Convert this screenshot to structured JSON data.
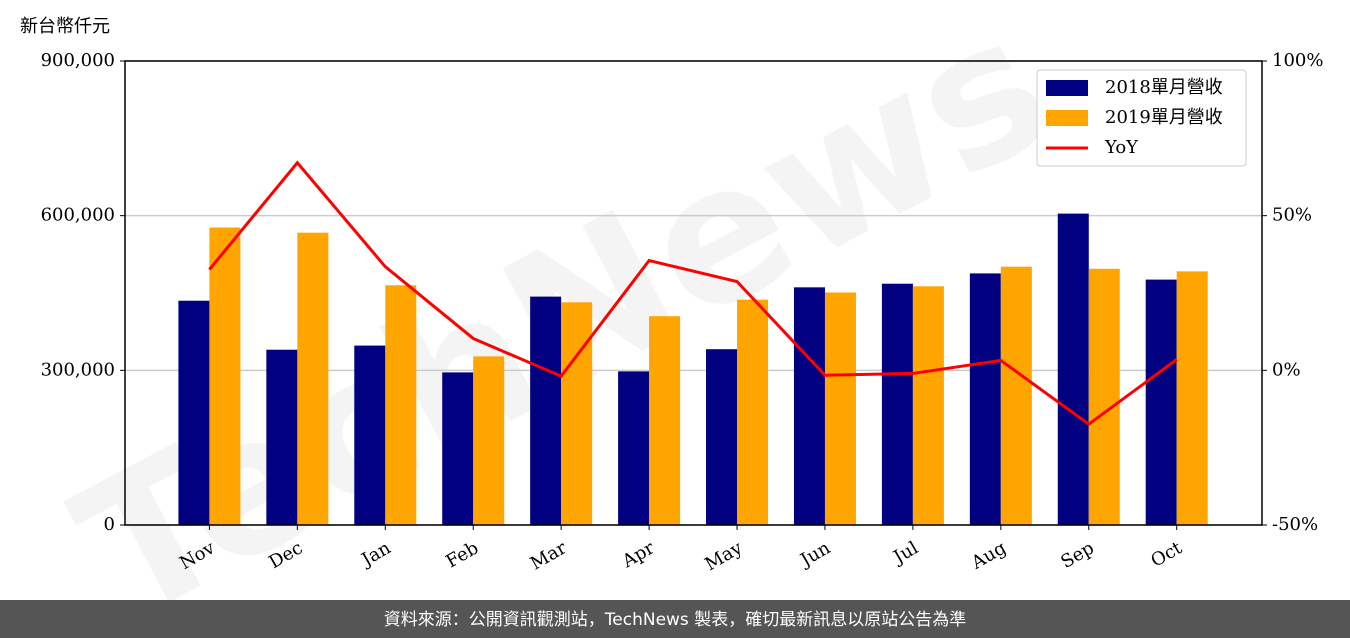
{
  "chart_data": {
    "type": "bar",
    "y_label": "新台幣仟元",
    "watermark": "TechNews",
    "footer": "資料來源：公開資訊觀測站，TechNews 製表，確切最新訊息以原站公告為準",
    "categories": [
      "Nov",
      "Dec",
      "Jan",
      "Feb",
      "Mar",
      "Apr",
      "May",
      "Jun",
      "Jul",
      "Aug",
      "Sep",
      "Oct"
    ],
    "series": [
      {
        "name": "2018單月營收",
        "type": "bar",
        "color": "#000080",
        "values": [
          435000,
          340000,
          348000,
          296000,
          443000,
          298000,
          341000,
          461000,
          468000,
          488000,
          604000,
          476000
        ]
      },
      {
        "name": "2019單月營收",
        "type": "bar",
        "color": "#ffa500",
        "values": [
          577000,
          567000,
          465000,
          327000,
          432000,
          405000,
          437000,
          451000,
          463000,
          501000,
          497000,
          492000
        ]
      },
      {
        "name": "YoY",
        "type": "line",
        "axis": "y2",
        "color": "#ff0000",
        "values": [
          32.6,
          67.1,
          33.5,
          10.3,
          -1.9,
          35.5,
          28.7,
          -1.6,
          -1.0,
          3.2,
          -17.4,
          3.5
        ]
      }
    ],
    "ylim": [
      0,
      900000
    ],
    "yticks": [
      0,
      {
        "value": 300000,
        "label": "300,000"
      },
      {
        "value": 600000,
        "label": "600,000"
      },
      {
        "value": 900000,
        "label": "900,000"
      }
    ],
    "y2lim": [
      -50,
      100
    ],
    "y2ticks": [
      {
        "value": -50,
        "label": "-50%"
      },
      {
        "value": 0,
        "label": "0%"
      },
      {
        "value": 50,
        "label": "50%"
      },
      {
        "value": 100,
        "label": "100%"
      }
    ],
    "grid": true,
    "legend": "upper right"
  }
}
